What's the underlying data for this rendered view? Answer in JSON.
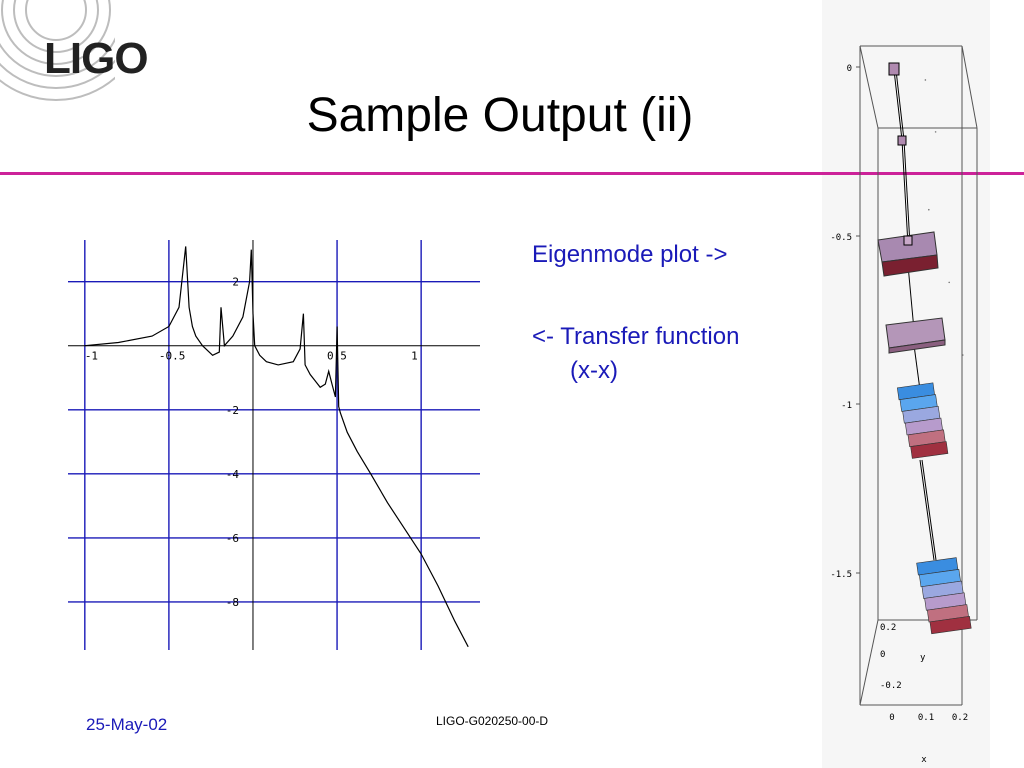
{
  "logo": {
    "text": "LIGO"
  },
  "slide": {
    "title": "Sample Output (ii)"
  },
  "bullets": [
    {
      "text": "Eigenmode plot ->"
    },
    {
      "text": "<- Transfer function",
      "continuation": "(x-x)"
    }
  ],
  "footer": {
    "date": "25-May-02",
    "doc_id": "LIGO-G020250-00-D"
  },
  "colors": {
    "accent_rule": "#cc2299",
    "bullet_text": "#1a1ab8",
    "grid": "#1a1ab8"
  },
  "chart_data": [
    {
      "type": "line",
      "x_ticks": [
        "-1",
        "-0.5",
        "0.5",
        "1"
      ],
      "y_ticks": [
        "2",
        "-2",
        "-4",
        "-6",
        "-8"
      ],
      "xlim": [
        -1.1,
        1.35
      ],
      "ylim": [
        -9.5,
        3.3
      ],
      "grid": true,
      "series": [
        {
          "x": [
            -1.0,
            -0.8,
            -0.6,
            -0.5,
            -0.44,
            -0.4,
            -0.38,
            -0.36,
            -0.34,
            -0.3,
            -0.24,
            -0.2,
            -0.19,
            -0.17,
            -0.12,
            -0.06,
            -0.02,
            -0.01,
            0.0,
            0.01,
            0.04,
            0.08,
            0.15,
            0.24,
            0.28,
            0.3,
            0.31,
            0.34,
            0.37,
            0.4,
            0.43,
            0.45,
            0.47,
            0.49,
            0.5,
            0.51,
            0.52,
            0.56,
            0.62,
            0.7,
            0.8,
            0.9,
            1.0,
            1.1,
            1.2,
            1.28
          ],
          "y": [
            0.0,
            0.1,
            0.3,
            0.6,
            1.2,
            3.1,
            1.2,
            0.6,
            0.3,
            0.0,
            -0.3,
            -0.2,
            1.2,
            0.0,
            0.3,
            0.9,
            2.0,
            3.0,
            1.0,
            0.0,
            -0.3,
            -0.5,
            -0.6,
            -0.5,
            -0.1,
            1.0,
            -0.6,
            -0.9,
            -1.1,
            -1.3,
            -1.2,
            -0.8,
            -1.2,
            -1.6,
            0.6,
            -1.9,
            -2.1,
            -2.7,
            -3.3,
            -4.0,
            -4.9,
            -5.7,
            -6.5,
            -7.5,
            -8.6,
            -9.4
          ]
        }
      ]
    },
    {
      "type": "scatter",
      "y_ticks": [
        "0",
        "-0.5",
        "-1",
        "-1.5"
      ],
      "ylim": [
        -1.9,
        0.05
      ],
      "inset_y_ticks": [
        "0.2",
        "0",
        "-0.2"
      ],
      "inset_y_label": "y",
      "x_ticks": [
        "0",
        "0.1",
        "0.2"
      ],
      "x_label": "x",
      "series": [
        {
          "x": [
            0.01,
            0.04,
            0.02,
            0.08,
            0.12,
            0.21
          ],
          "y": [
            0.0,
            -0.2,
            -0.5,
            -0.78,
            -1.06,
            -1.6
          ]
        }
      ]
    }
  ]
}
